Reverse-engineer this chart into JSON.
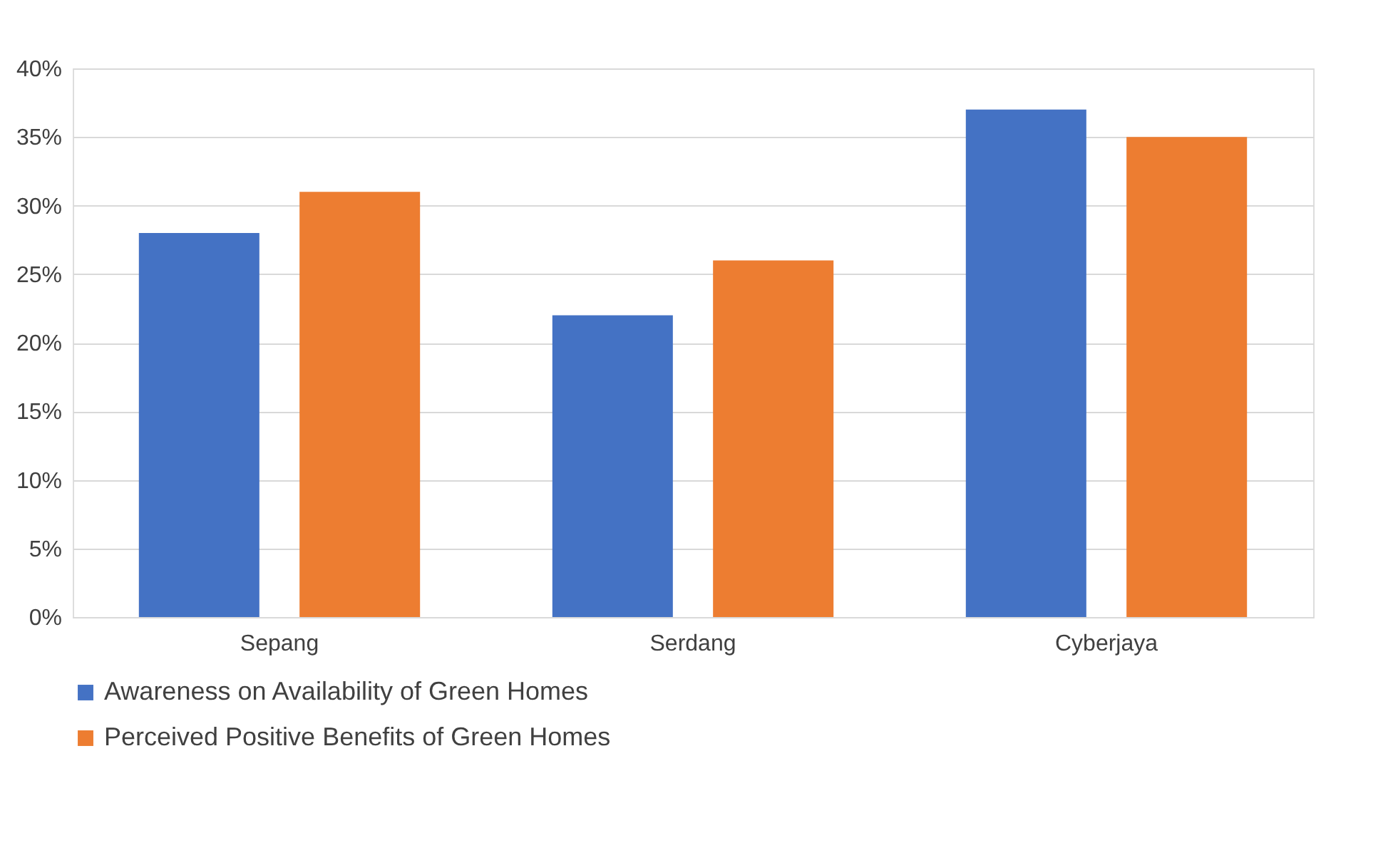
{
  "chart_data": {
    "type": "bar",
    "categories": [
      "Sepang",
      "Serdang",
      "Cyberjaya"
    ],
    "series": [
      {
        "name": "Awareness on Availability of Green Homes",
        "color": "#4472c4",
        "values": [
          28,
          22,
          37
        ]
      },
      {
        "name": "Perceived Positive Benefits of Green Homes",
        "color": "#ed7d31",
        "values": [
          31,
          26,
          35
        ]
      }
    ],
    "ylim": [
      0,
      40
    ],
    "yticks": [
      {
        "value": 0,
        "label": "0%"
      },
      {
        "value": 5,
        "label": "5%"
      },
      {
        "value": 10,
        "label": "10%"
      },
      {
        "value": 15,
        "label": "15%"
      },
      {
        "value": 20,
        "label": "20%"
      },
      {
        "value": 25,
        "label": "25%"
      },
      {
        "value": 30,
        "label": "30%"
      },
      {
        "value": 35,
        "label": "35%"
      },
      {
        "value": 40,
        "label": "40%"
      }
    ],
    "grid": "y",
    "legend": "bottom"
  }
}
